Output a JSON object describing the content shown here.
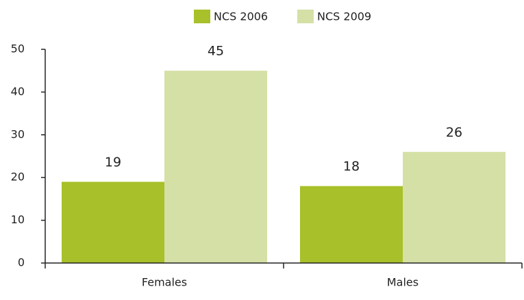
{
  "chart_data": {
    "type": "bar",
    "categories": [
      "Females",
      "Males"
    ],
    "series": [
      {
        "name": "NCS 2006",
        "color": "#a8c02a",
        "values": [
          19,
          18
        ]
      },
      {
        "name": "NCS 2009",
        "color": "#d5e0a6",
        "values": [
          45,
          26
        ]
      }
    ],
    "ylim": [
      0,
      50
    ],
    "yticks": [
      0,
      10,
      20,
      30,
      40,
      50
    ],
    "grid": false,
    "legend": "top"
  }
}
